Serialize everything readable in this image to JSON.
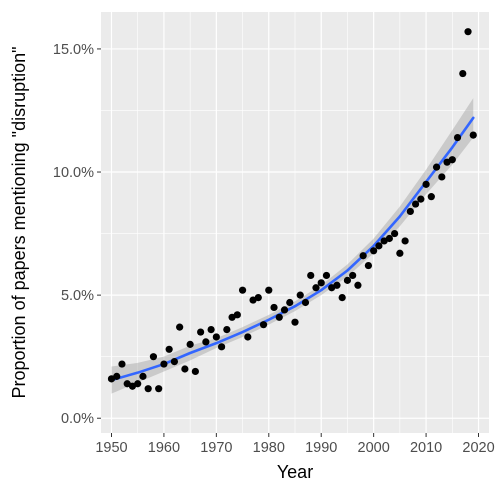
{
  "chart_data": {
    "type": "scatter",
    "title": "",
    "xlabel": "Year",
    "ylabel": "Proportion of papers mentioning \"disruption\"",
    "xlim": [
      1948,
      2022
    ],
    "ylim": [
      -0.6,
      16.5
    ],
    "x_ticks": [
      1950,
      1960,
      1970,
      1980,
      1990,
      2000,
      2010,
      2020
    ],
    "y_ticks": [
      0,
      5,
      10,
      15
    ],
    "y_tick_labels": [
      "0.0%",
      "5.0%",
      "10.0%",
      "15.0%"
    ],
    "grid": true,
    "legend": "none",
    "colors": {
      "panel": "#ebebeb",
      "grid": "#ffffff",
      "points": "#000000",
      "trend": "#3366ff",
      "ribbon": "#999999"
    },
    "points": {
      "x": [
        1950,
        1951,
        1952,
        1953,
        1954,
        1955,
        1956,
        1957,
        1958,
        1959,
        1960,
        1961,
        1962,
        1963,
        1964,
        1965,
        1966,
        1967,
        1968,
        1969,
        1970,
        1971,
        1972,
        1973,
        1974,
        1975,
        1976,
        1977,
        1978,
        1979,
        1980,
        1981,
        1982,
        1983,
        1984,
        1985,
        1986,
        1987,
        1988,
        1989,
        1990,
        1991,
        1992,
        1993,
        1994,
        1995,
        1996,
        1997,
        1998,
        1999,
        2000,
        2001,
        2002,
        2003,
        2004,
        2005,
        2006,
        2007,
        2008,
        2009,
        2010,
        2011,
        2012,
        2013,
        2014,
        2015,
        2016,
        2017,
        2018,
        2019
      ],
      "y": [
        1.6,
        1.7,
        2.2,
        1.4,
        1.3,
        1.4,
        1.7,
        1.2,
        2.5,
        1.2,
        2.2,
        2.8,
        2.3,
        3.7,
        2.0,
        3.0,
        1.9,
        3.5,
        3.1,
        3.6,
        3.3,
        2.9,
        3.6,
        4.1,
        4.2,
        5.2,
        3.3,
        4.8,
        4.9,
        3.8,
        5.2,
        4.5,
        4.1,
        4.4,
        4.7,
        3.9,
        5.0,
        4.7,
        5.8,
        5.3,
        5.5,
        5.8,
        5.3,
        5.4,
        4.9,
        5.6,
        5.8,
        5.4,
        6.6,
        6.2,
        6.8,
        7.0,
        7.2,
        7.3,
        7.5,
        6.7,
        7.2,
        8.4,
        8.7,
        8.9,
        9.5,
        9.0,
        10.2,
        9.8,
        10.4,
        10.5,
        11.4,
        14.0,
        15.7,
        11.5
      ]
    },
    "trend": {
      "x": [
        1950,
        1955,
        1960,
        1965,
        1970,
        1975,
        1980,
        1985,
        1990,
        1995,
        2000,
        2005,
        2010,
        2015,
        2019
      ],
      "y": [
        1.55,
        1.85,
        2.2,
        2.65,
        3.05,
        3.5,
        4.0,
        4.55,
        5.2,
        6.0,
        7.0,
        8.2,
        9.6,
        11.0,
        12.2
      ],
      "lower": [
        1.0,
        1.45,
        1.9,
        2.35,
        2.85,
        3.3,
        3.8,
        4.35,
        5.0,
        5.75,
        6.7,
        7.8,
        9.1,
        10.3,
        11.4
      ],
      "upper": [
        2.1,
        2.25,
        2.5,
        2.95,
        3.25,
        3.7,
        4.2,
        4.75,
        5.4,
        6.25,
        7.3,
        8.6,
        10.1,
        11.7,
        13.0
      ]
    }
  }
}
